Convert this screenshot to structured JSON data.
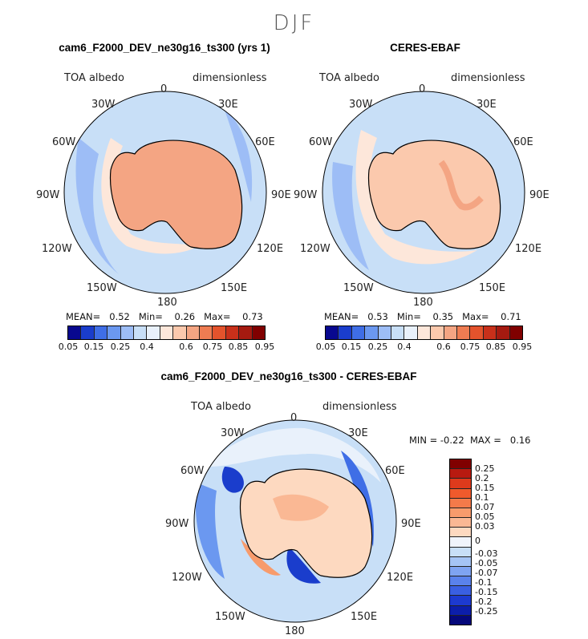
{
  "figure": {
    "season": "DJF"
  },
  "panels": {
    "model": {
      "title": "cam6_F2000_DEV_ne30g16_ts300 (yrs 1)",
      "left_label": "TOA albedo",
      "right_label": "dimensionless",
      "stats": {
        "mean_label": "MEAN=",
        "mean": "0.52",
        "min_label": "Min=",
        "min": "0.26",
        "max_label": "Max=",
        "max": "0.73"
      },
      "ocean_color": "#c8dff7",
      "land_color": "#f4a583"
    },
    "obs": {
      "title": "CERES-EBAF",
      "left_label": "TOA albedo",
      "right_label": "dimensionless",
      "stats": {
        "mean_label": "MEAN=",
        "mean": "0.53",
        "min_label": "Min=",
        "min": "0.35",
        "max_label": "Max=",
        "max": "0.71"
      },
      "ocean_color": "#c8dff7",
      "land_color": "#fbc9ad"
    },
    "diff": {
      "title": "cam6_F2000_DEV_ne30g16_ts300 - CERES-EBAF",
      "left_label": "TOA albedo",
      "right_label": "dimensionless",
      "stats": {
        "min_label": "MIN =",
        "min": "-0.22",
        "max_label": "MAX =",
        "max": "0.16"
      }
    }
  },
  "meridian_labels": {
    "top": "0",
    "n30e": "30E",
    "n60e": "60E",
    "e90": "90E",
    "s120e": "120E",
    "s150e": "150E",
    "bottom": "180",
    "s150w": "150W",
    "s120w": "120W",
    "w90": "90W",
    "n60w": "60W",
    "n30w": "30W"
  },
  "colorbar": {
    "colors": [
      "#08088f",
      "#1a3dcc",
      "#3f6ee6",
      "#6b98f0",
      "#9dbdf6",
      "#c8dff7",
      "#e9f1fb",
      "#fde7da",
      "#fbc9ad",
      "#f4a583",
      "#ee7c52",
      "#e4532c",
      "#c8301a",
      "#a51a10",
      "#800000"
    ],
    "tick_labels": [
      "0.05",
      "0.15",
      "0.25",
      "0.4",
      "0.6",
      "0.75",
      "0.85",
      "0.95"
    ]
  },
  "diff_colorbar": {
    "colors": [
      "#800000",
      "#b81a10",
      "#de3a1c",
      "#f05a2c",
      "#f47a4a",
      "#f79b6c",
      "#fab894",
      "#fdd9c0",
      "#f0f4fb",
      "#c8dff7",
      "#a5c4f5",
      "#7fa4f2",
      "#5a82ec",
      "#3a5fe2",
      "#1d3ad0",
      "#0c1eaa",
      "#05087a"
    ],
    "tick_labels": [
      "0.25",
      "0.2",
      "0.15",
      "0.1",
      "0.07",
      "0.05",
      "0.03",
      "0",
      "-0.03",
      "-0.05",
      "-0.07",
      "-0.1",
      "-0.15",
      "-0.2",
      "-0.25"
    ]
  }
}
